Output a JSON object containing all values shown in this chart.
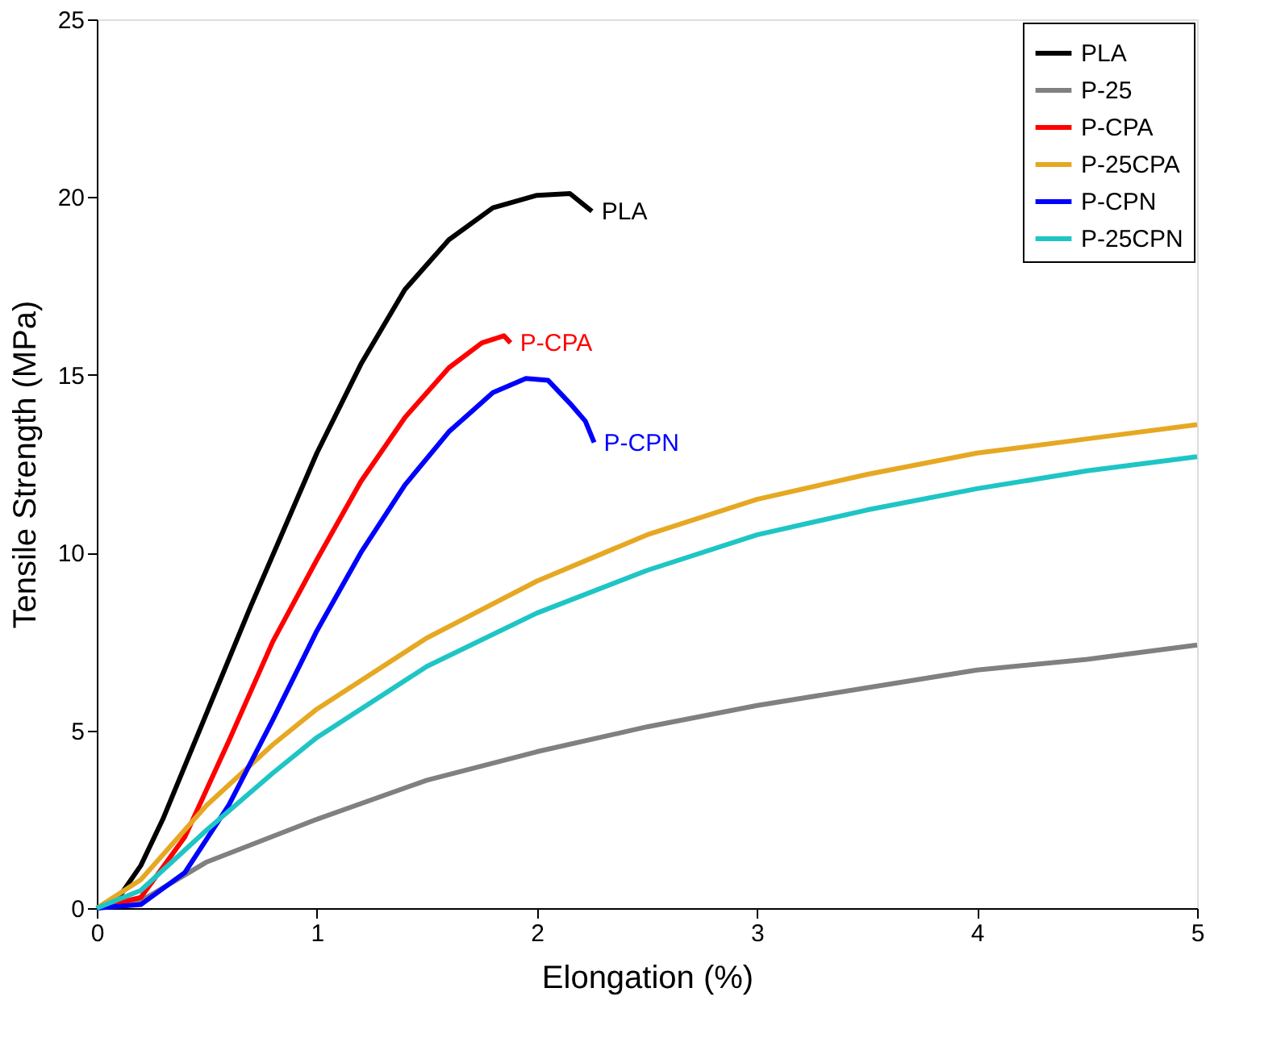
{
  "chart_data": {
    "type": "line",
    "xlabel": "Elongation (%)",
    "ylabel": "Tensile Strength (MPa)",
    "xlim": [
      0,
      5
    ],
    "ylim": [
      0,
      25
    ],
    "xticks": [
      0,
      1,
      2,
      3,
      4,
      5
    ],
    "yticks": [
      0,
      5,
      10,
      15,
      20,
      25
    ],
    "grid": false,
    "legend": "top right",
    "line_style": "solid",
    "marker": "none",
    "series": [
      {
        "name": "PLA",
        "color": "#000000",
        "x": [
          0,
          0.1,
          0.2,
          0.3,
          0.5,
          0.7,
          1.0,
          1.2,
          1.4,
          1.6,
          1.8,
          2.0,
          2.15,
          2.25
        ],
        "values": [
          0,
          0.3,
          1.2,
          2.5,
          5.5,
          8.5,
          12.8,
          15.3,
          17.4,
          18.8,
          19.7,
          20.05,
          20.1,
          19.6
        ]
      },
      {
        "name": "P-25",
        "color": "#808080",
        "x": [
          0,
          0.2,
          0.5,
          1.0,
          1.5,
          2.0,
          2.5,
          3.0,
          3.5,
          4.0,
          4.5,
          5.0
        ],
        "values": [
          0,
          0.2,
          1.3,
          2.5,
          3.6,
          4.4,
          5.1,
          5.7,
          6.2,
          6.7,
          7.0,
          7.4
        ]
      },
      {
        "name": "P-CPA",
        "color": "#ff0000",
        "x": [
          0,
          0.2,
          0.4,
          0.6,
          0.8,
          1.0,
          1.2,
          1.4,
          1.6,
          1.75,
          1.85,
          1.88
        ],
        "values": [
          0,
          0.3,
          2,
          4.7,
          7.5,
          9.8,
          12,
          13.8,
          15.2,
          15.9,
          16.1,
          15.9
        ]
      },
      {
        "name": "P-25CPA",
        "color": "#e6a823",
        "x": [
          0,
          0.2,
          0.5,
          0.8,
          1.0,
          1.5,
          2.0,
          2.5,
          3.0,
          3.5,
          4.0,
          4.5,
          5.0
        ],
        "values": [
          0,
          0.8,
          2.9,
          4.6,
          5.6,
          7.6,
          9.2,
          10.5,
          11.5,
          12.2,
          12.8,
          13.2,
          13.6
        ]
      },
      {
        "name": "P-CPN",
        "color": "#0000ff",
        "x": [
          0,
          0.2,
          0.4,
          0.6,
          0.8,
          1.0,
          1.2,
          1.4,
          1.6,
          1.8,
          1.95,
          2.05,
          2.15,
          2.22,
          2.26
        ],
        "values": [
          0,
          0.1,
          1,
          2.9,
          5.3,
          7.8,
          10,
          11.9,
          13.4,
          14.5,
          14.9,
          14.85,
          14.2,
          13.7,
          13.1
        ]
      },
      {
        "name": "P-25CPN",
        "color": "#1fc5c5",
        "x": [
          0,
          0.2,
          0.5,
          0.8,
          1.0,
          1.5,
          2.0,
          2.5,
          3.0,
          3.5,
          4.0,
          4.5,
          5.0
        ],
        "values": [
          0,
          0.5,
          2.2,
          3.8,
          4.8,
          6.8,
          8.3,
          9.5,
          10.5,
          11.2,
          11.8,
          12.3,
          12.7
        ]
      }
    ],
    "annotations": [
      {
        "text": "PLA",
        "x": 2.25,
        "y": 19.6
      },
      {
        "text": "P-CPA",
        "x": 1.88,
        "y": 15.9
      },
      {
        "text": "P-CPN",
        "x": 2.26,
        "y": 13.1
      }
    ]
  }
}
